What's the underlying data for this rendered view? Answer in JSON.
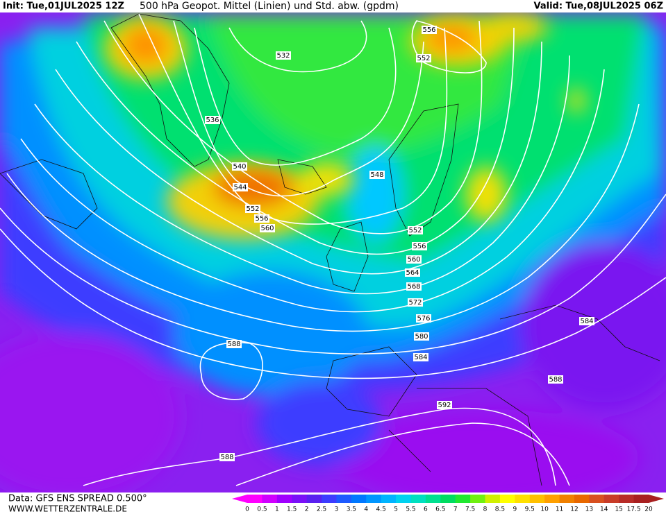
{
  "header": {
    "init": "Init: Tue,01JUL2025 12Z",
    "title": "500 hPa Geopot. Mittel (Linien) und Std. abw. (gpdm)",
    "valid": "Valid: Tue,08JUL2025 06Z"
  },
  "footer": {
    "data": "Data: GFS ENS SPREAD 0.500°",
    "site": "WWW.WETTERZENTRALE.DE"
  },
  "contour_labels": [
    556,
    552,
    532,
    536,
    540,
    544,
    548,
    552,
    556,
    560,
    552,
    556,
    560,
    564,
    568,
    572,
    576,
    580,
    584,
    584,
    588,
    588,
    592,
    588
  ],
  "colorbar": {
    "labels": [
      0,
      0.5,
      1,
      1.5,
      2,
      2.5,
      3,
      3.5,
      4,
      4.5,
      5,
      5.5,
      6,
      6.5,
      7,
      7.5,
      8,
      8.5,
      9,
      9.5,
      10,
      11,
      12,
      13,
      14,
      15,
      17.5,
      20
    ],
    "colors": [
      "#ff00ff",
      "#d000ff",
      "#a000ff",
      "#7a10f8",
      "#5a20f0",
      "#3c3cff",
      "#1e5aff",
      "#0078ff",
      "#0096ff",
      "#00b4ff",
      "#00d2f0",
      "#00e0c0",
      "#00e090",
      "#00dc60",
      "#20e830",
      "#70f010",
      "#d0f000",
      "#ffff00",
      "#ffe000",
      "#ffc000",
      "#ffa000",
      "#f08000",
      "#e86800",
      "#d85020",
      "#c83c28",
      "#b82c28",
      "#a82020"
    ]
  }
}
